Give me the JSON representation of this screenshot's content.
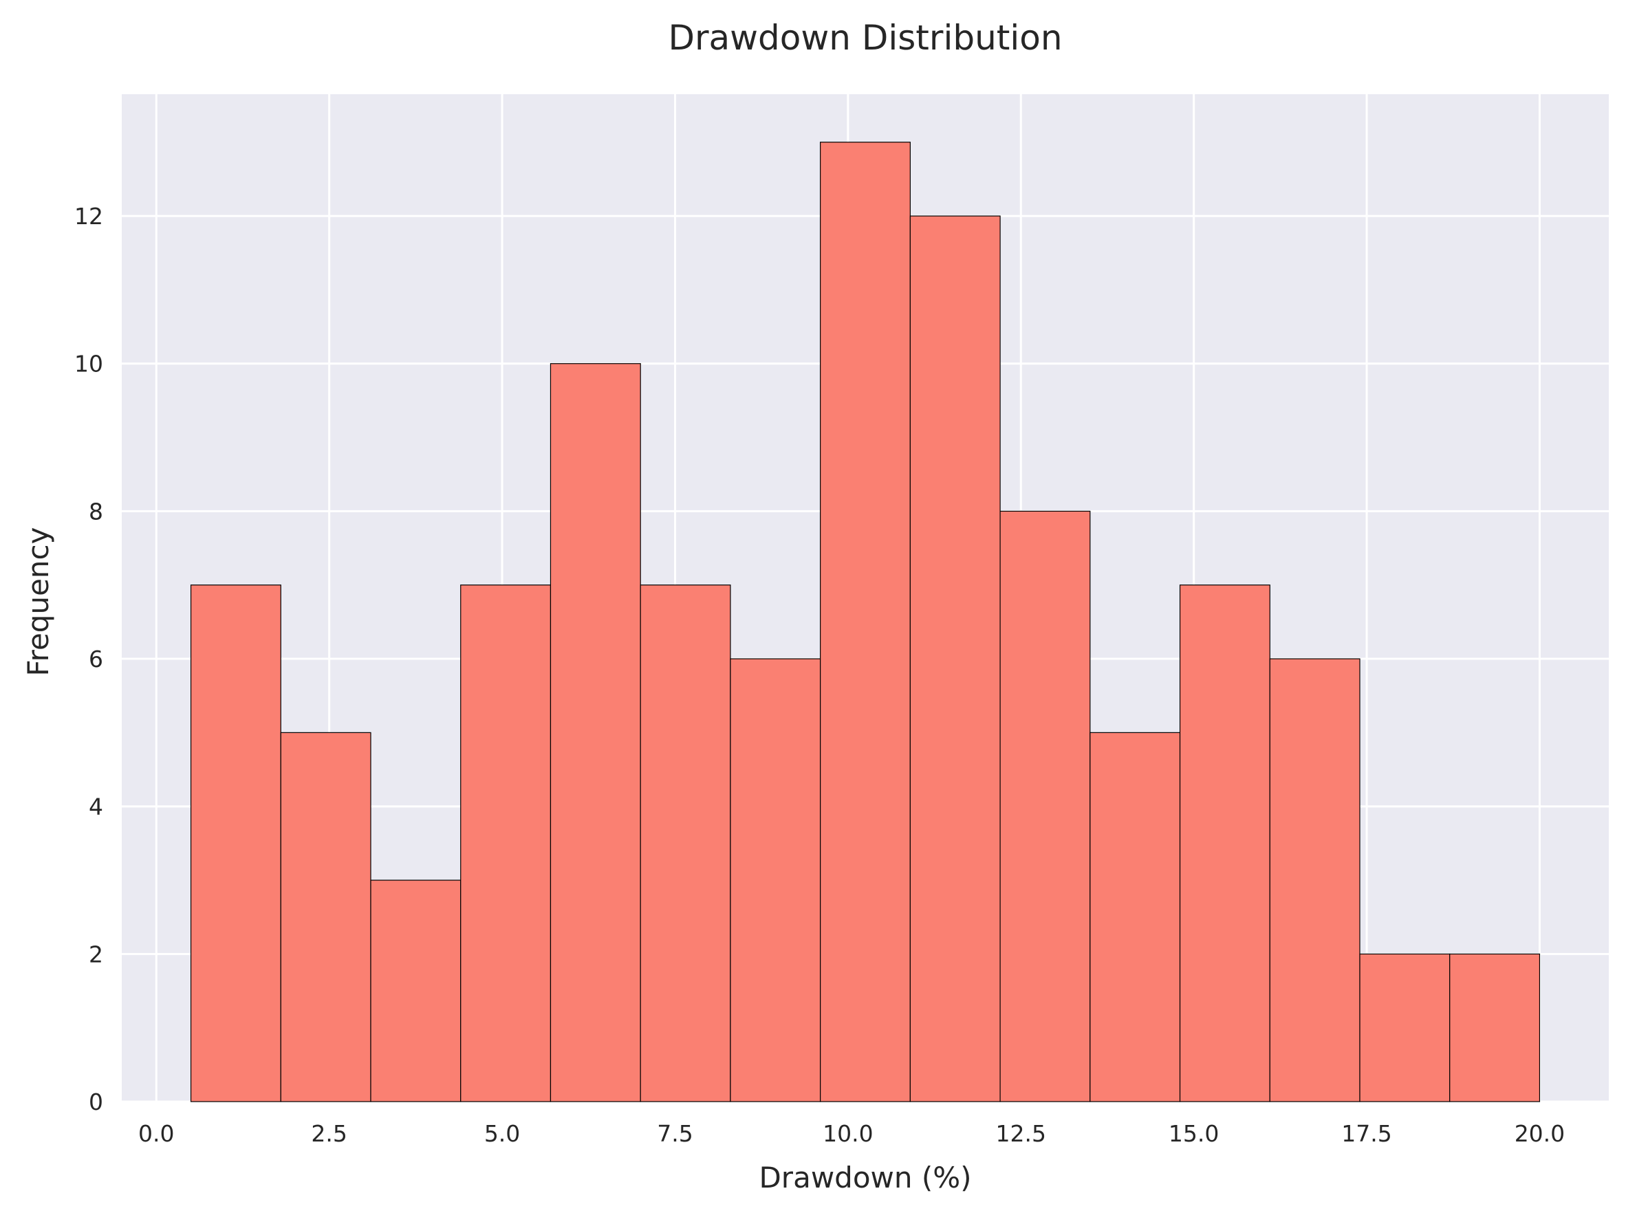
{
  "chart_data": {
    "type": "bar",
    "title": "Drawdown Distribution",
    "xlabel": "Drawdown (%)",
    "ylabel": "Frequency",
    "bin_edges": [
      0.5,
      1.8,
      3.1,
      4.4,
      5.7,
      7.0,
      8.3,
      9.6,
      10.9,
      12.2,
      13.5,
      14.8,
      16.1,
      17.4,
      18.7,
      20.0
    ],
    "values": [
      7,
      5,
      3,
      7,
      10,
      7,
      6,
      13,
      12,
      8,
      5,
      7,
      6,
      2,
      2
    ],
    "xlim": [
      -0.5,
      21.0
    ],
    "ylim": [
      0,
      13.65
    ],
    "xticks": [
      0.0,
      2.5,
      5.0,
      7.5,
      10.0,
      12.5,
      15.0,
      17.5,
      20.0
    ],
    "xtick_labels": [
      "0.0",
      "2.5",
      "5.0",
      "7.5",
      "10.0",
      "12.5",
      "15.0",
      "17.5",
      "20.0"
    ],
    "yticks": [
      0,
      2,
      4,
      6,
      8,
      10,
      12
    ],
    "ytick_labels": [
      "0",
      "2",
      "4",
      "6",
      "8",
      "10",
      "12"
    ],
    "grid": true,
    "colors": {
      "bar_fill": "#fa8072",
      "bar_edge": "#000000",
      "plot_background": "#eaeaf2",
      "grid": "#ffffff",
      "text": "#262626"
    }
  }
}
